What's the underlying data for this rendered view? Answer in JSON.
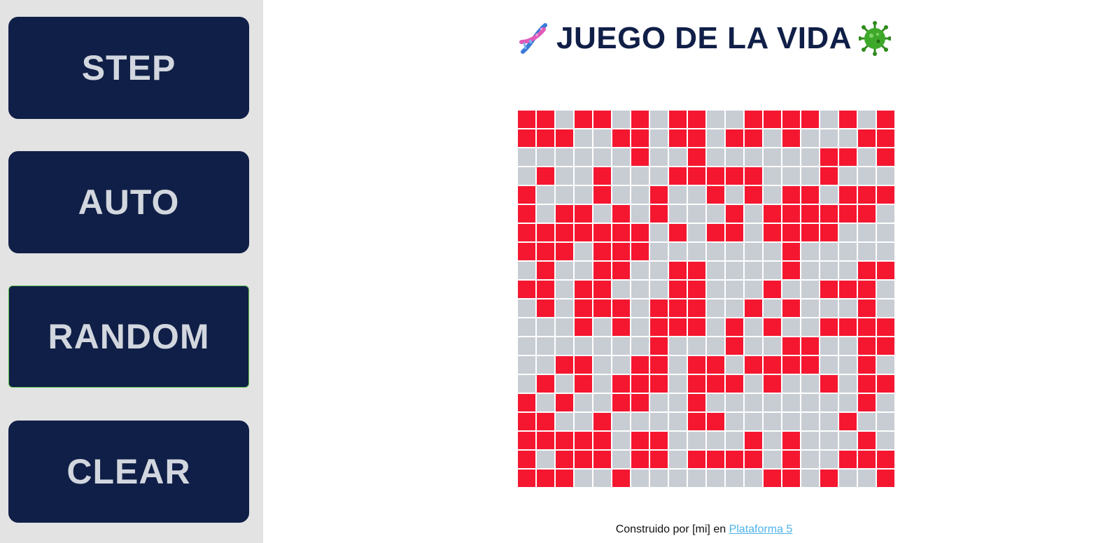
{
  "sidebar": {
    "buttons": [
      {
        "label": "STEP"
      },
      {
        "label": "AUTO"
      },
      {
        "label": "RANDOM"
      },
      {
        "label": "CLEAR"
      }
    ]
  },
  "header": {
    "title": "JUEGO DE LA VIDA",
    "left_icon": "dna-icon",
    "right_icon": "microbe-icon"
  },
  "board": {
    "rows": 20,
    "cols": 20,
    "colors": {
      "alive": "#f51730",
      "dead": "#c8cdd4"
    },
    "grid": [
      "11011010110011110101",
      "11100110110110100011",
      "00000010010000001101",
      "01001000111110001000",
      "10001001001010110111",
      "10110101000101111110",
      "11111110101101111000",
      "11101110000000100000",
      "01001100110000100011",
      "11011000110001001110",
      "01011101110010100010",
      "00010101110101001111",
      "00000001000100110011",
      "00110011011011110010",
      "01010111011101001011",
      "10100110010000000010",
      "11001000011000000100",
      "11111011000010100010",
      "10111011011110100111",
      "11100100000001101001"
    ]
  },
  "footer": {
    "prefix": "Construido por [mi] en ",
    "link": "Plataforma 5"
  },
  "colors": {
    "button_bg": "#101f47",
    "button_text": "#d2d6de",
    "sidebar_bg": "#e3e3e3",
    "title": "#101f47",
    "link": "#4fb3e8"
  }
}
